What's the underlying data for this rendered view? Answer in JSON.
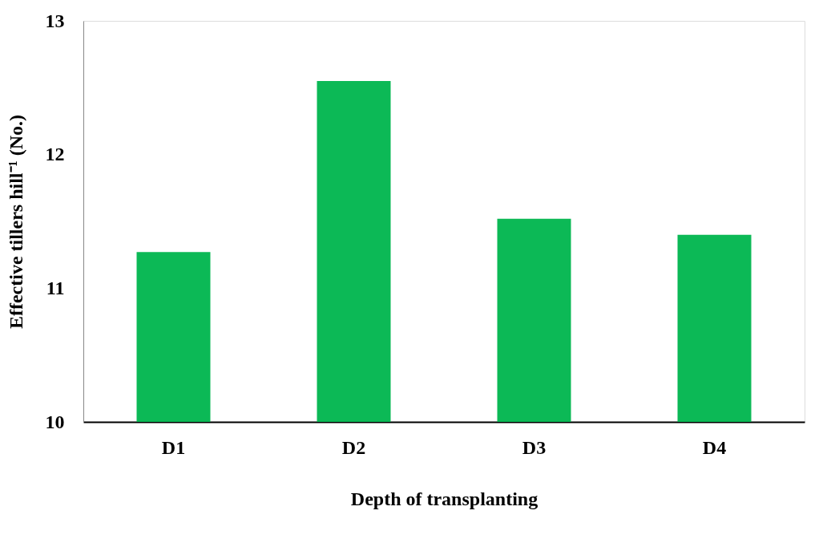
{
  "chart_data": {
    "type": "bar",
    "xlabel": "Depth of transplanting",
    "ylabel": "Effective tillers hill⁻¹ (No.)",
    "categories": [
      "D1",
      "D2",
      "D3",
      "D4"
    ],
    "values": [
      11.27,
      12.55,
      11.52,
      11.4
    ],
    "color": "#0cb956",
    "ylim": [
      10,
      13
    ],
    "yticks": [
      10,
      11,
      12,
      13
    ],
    "grid": false
  }
}
